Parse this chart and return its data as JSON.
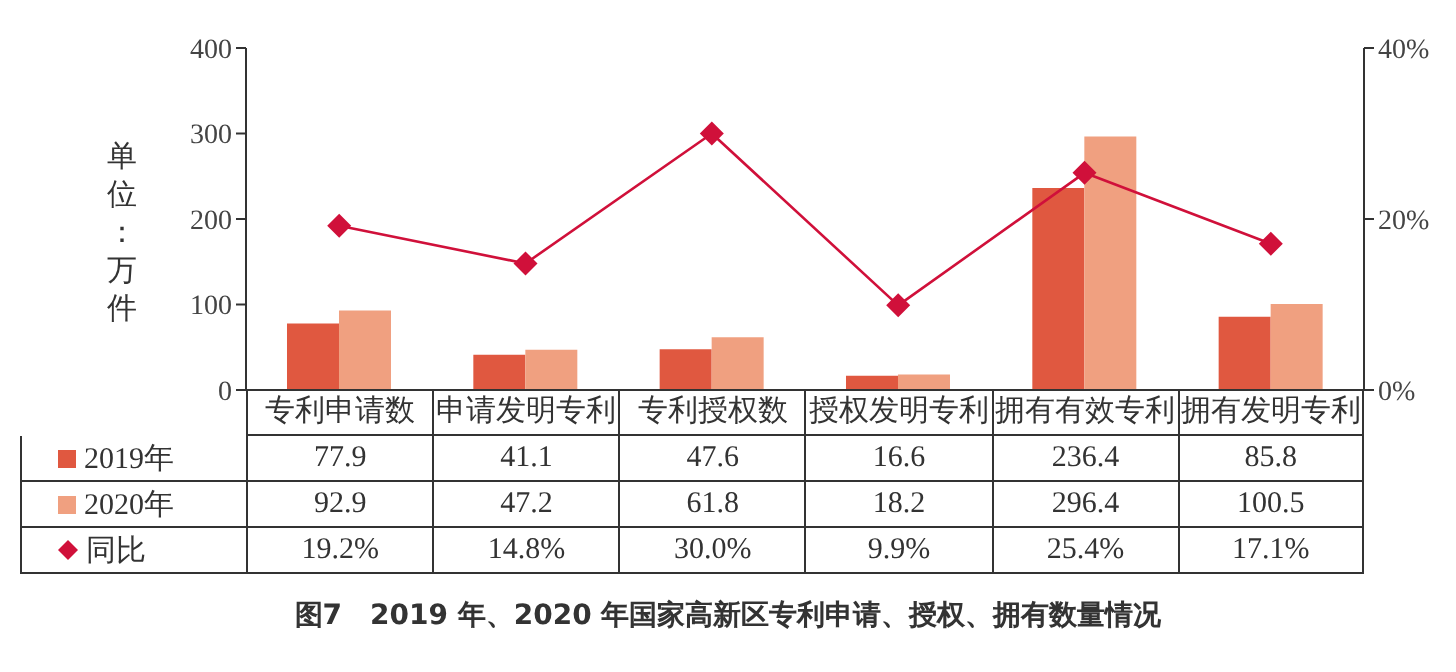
{
  "chart_data": {
    "type": "bar",
    "title": "图7　2019 年、2020 年国家高新区专利申请、授权、拥有数量情况",
    "ylabel": "单位：万件",
    "categories": [
      "专利申请数",
      "申请发明专利",
      "专利授权数",
      "授权发明专利",
      "拥有有效专利",
      "拥有发明专利"
    ],
    "series": [
      {
        "name": "2019年",
        "color": "#e05840",
        "values": [
          77.9,
          41.1,
          47.6,
          16.6,
          236.4,
          85.8
        ]
      },
      {
        "name": "2020年",
        "color": "#f0a080",
        "values": [
          92.9,
          47.2,
          61.8,
          18.2,
          296.4,
          100.5
        ]
      },
      {
        "name": "同比",
        "type": "line",
        "axis": "y2",
        "color": "#d0103a",
        "marker": "diamond",
        "values": [
          19.2,
          14.8,
          30.0,
          9.9,
          25.4,
          17.1
        ],
        "value_labels": [
          "19.2%",
          "14.8%",
          "30.0%",
          "9.9%",
          "25.4%",
          "17.1%"
        ]
      }
    ],
    "ylim": [
      0,
      400
    ],
    "yticks": [
      0,
      100,
      200,
      300,
      400
    ],
    "y2lim": [
      0,
      40
    ],
    "y2ticks": [
      {
        "value": 0,
        "label": "0%"
      },
      {
        "value": 20,
        "label": "20%"
      },
      {
        "value": 40,
        "label": "40%"
      }
    ],
    "data_labels": true,
    "legend": "bottom",
    "grid": false
  }
}
